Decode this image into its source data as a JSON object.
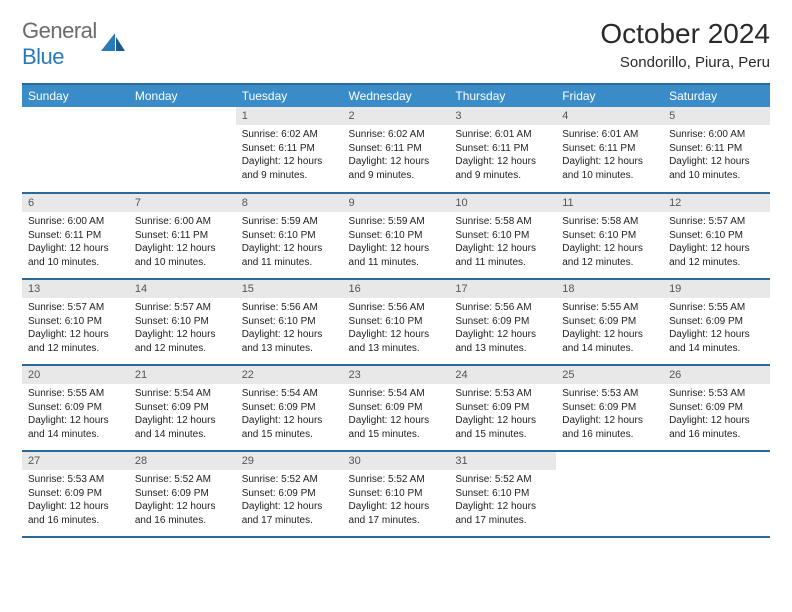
{
  "logo": {
    "text1": "General",
    "text2": "Blue"
  },
  "title": "October 2024",
  "subtitle": "Sondorillo, Piura, Peru",
  "colors": {
    "header_bg": "#3a8cc9",
    "header_border": "#2a6a9a",
    "daynum_bg": "#e8e8e8",
    "logo_gray": "#6b6b6b",
    "logo_blue": "#2a7ab8"
  },
  "weekdays": [
    "Sunday",
    "Monday",
    "Tuesday",
    "Wednesday",
    "Thursday",
    "Friday",
    "Saturday"
  ],
  "weeks": [
    [
      null,
      null,
      {
        "n": "1",
        "sr": "Sunrise: 6:02 AM",
        "ss": "Sunset: 6:11 PM",
        "dl": "Daylight: 12 hours and 9 minutes."
      },
      {
        "n": "2",
        "sr": "Sunrise: 6:02 AM",
        "ss": "Sunset: 6:11 PM",
        "dl": "Daylight: 12 hours and 9 minutes."
      },
      {
        "n": "3",
        "sr": "Sunrise: 6:01 AM",
        "ss": "Sunset: 6:11 PM",
        "dl": "Daylight: 12 hours and 9 minutes."
      },
      {
        "n": "4",
        "sr": "Sunrise: 6:01 AM",
        "ss": "Sunset: 6:11 PM",
        "dl": "Daylight: 12 hours and 10 minutes."
      },
      {
        "n": "5",
        "sr": "Sunrise: 6:00 AM",
        "ss": "Sunset: 6:11 PM",
        "dl": "Daylight: 12 hours and 10 minutes."
      }
    ],
    [
      {
        "n": "6",
        "sr": "Sunrise: 6:00 AM",
        "ss": "Sunset: 6:11 PM",
        "dl": "Daylight: 12 hours and 10 minutes."
      },
      {
        "n": "7",
        "sr": "Sunrise: 6:00 AM",
        "ss": "Sunset: 6:11 PM",
        "dl": "Daylight: 12 hours and 10 minutes."
      },
      {
        "n": "8",
        "sr": "Sunrise: 5:59 AM",
        "ss": "Sunset: 6:10 PM",
        "dl": "Daylight: 12 hours and 11 minutes."
      },
      {
        "n": "9",
        "sr": "Sunrise: 5:59 AM",
        "ss": "Sunset: 6:10 PM",
        "dl": "Daylight: 12 hours and 11 minutes."
      },
      {
        "n": "10",
        "sr": "Sunrise: 5:58 AM",
        "ss": "Sunset: 6:10 PM",
        "dl": "Daylight: 12 hours and 11 minutes."
      },
      {
        "n": "11",
        "sr": "Sunrise: 5:58 AM",
        "ss": "Sunset: 6:10 PM",
        "dl": "Daylight: 12 hours and 12 minutes."
      },
      {
        "n": "12",
        "sr": "Sunrise: 5:57 AM",
        "ss": "Sunset: 6:10 PM",
        "dl": "Daylight: 12 hours and 12 minutes."
      }
    ],
    [
      {
        "n": "13",
        "sr": "Sunrise: 5:57 AM",
        "ss": "Sunset: 6:10 PM",
        "dl": "Daylight: 12 hours and 12 minutes."
      },
      {
        "n": "14",
        "sr": "Sunrise: 5:57 AM",
        "ss": "Sunset: 6:10 PM",
        "dl": "Daylight: 12 hours and 12 minutes."
      },
      {
        "n": "15",
        "sr": "Sunrise: 5:56 AM",
        "ss": "Sunset: 6:10 PM",
        "dl": "Daylight: 12 hours and 13 minutes."
      },
      {
        "n": "16",
        "sr": "Sunrise: 5:56 AM",
        "ss": "Sunset: 6:10 PM",
        "dl": "Daylight: 12 hours and 13 minutes."
      },
      {
        "n": "17",
        "sr": "Sunrise: 5:56 AM",
        "ss": "Sunset: 6:09 PM",
        "dl": "Daylight: 12 hours and 13 minutes."
      },
      {
        "n": "18",
        "sr": "Sunrise: 5:55 AM",
        "ss": "Sunset: 6:09 PM",
        "dl": "Daylight: 12 hours and 14 minutes."
      },
      {
        "n": "19",
        "sr": "Sunrise: 5:55 AM",
        "ss": "Sunset: 6:09 PM",
        "dl": "Daylight: 12 hours and 14 minutes."
      }
    ],
    [
      {
        "n": "20",
        "sr": "Sunrise: 5:55 AM",
        "ss": "Sunset: 6:09 PM",
        "dl": "Daylight: 12 hours and 14 minutes."
      },
      {
        "n": "21",
        "sr": "Sunrise: 5:54 AM",
        "ss": "Sunset: 6:09 PM",
        "dl": "Daylight: 12 hours and 14 minutes."
      },
      {
        "n": "22",
        "sr": "Sunrise: 5:54 AM",
        "ss": "Sunset: 6:09 PM",
        "dl": "Daylight: 12 hours and 15 minutes."
      },
      {
        "n": "23",
        "sr": "Sunrise: 5:54 AM",
        "ss": "Sunset: 6:09 PM",
        "dl": "Daylight: 12 hours and 15 minutes."
      },
      {
        "n": "24",
        "sr": "Sunrise: 5:53 AM",
        "ss": "Sunset: 6:09 PM",
        "dl": "Daylight: 12 hours and 15 minutes."
      },
      {
        "n": "25",
        "sr": "Sunrise: 5:53 AM",
        "ss": "Sunset: 6:09 PM",
        "dl": "Daylight: 12 hours and 16 minutes."
      },
      {
        "n": "26",
        "sr": "Sunrise: 5:53 AM",
        "ss": "Sunset: 6:09 PM",
        "dl": "Daylight: 12 hours and 16 minutes."
      }
    ],
    [
      {
        "n": "27",
        "sr": "Sunrise: 5:53 AM",
        "ss": "Sunset: 6:09 PM",
        "dl": "Daylight: 12 hours and 16 minutes."
      },
      {
        "n": "28",
        "sr": "Sunrise: 5:52 AM",
        "ss": "Sunset: 6:09 PM",
        "dl": "Daylight: 12 hours and 16 minutes."
      },
      {
        "n": "29",
        "sr": "Sunrise: 5:52 AM",
        "ss": "Sunset: 6:09 PM",
        "dl": "Daylight: 12 hours and 17 minutes."
      },
      {
        "n": "30",
        "sr": "Sunrise: 5:52 AM",
        "ss": "Sunset: 6:10 PM",
        "dl": "Daylight: 12 hours and 17 minutes."
      },
      {
        "n": "31",
        "sr": "Sunrise: 5:52 AM",
        "ss": "Sunset: 6:10 PM",
        "dl": "Daylight: 12 hours and 17 minutes."
      },
      null,
      null
    ]
  ]
}
